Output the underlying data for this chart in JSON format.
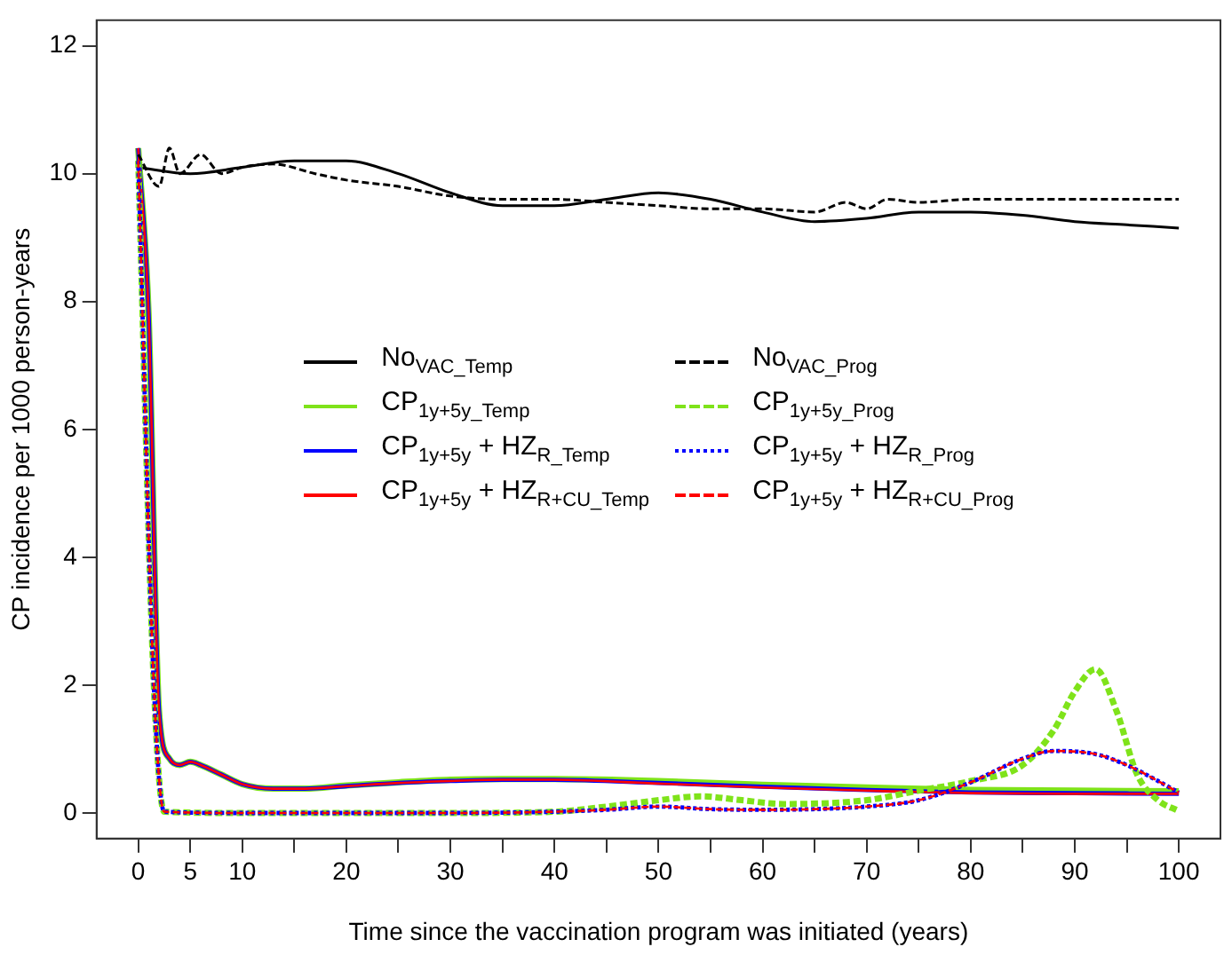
{
  "chart_data": {
    "type": "line",
    "xlabel": "Time since the vaccination program was initiated (years)",
    "ylabel": "CP incidence per 1000 person-years",
    "xlim": [
      -4,
      104
    ],
    "ylim": [
      -0.4,
      12.4
    ],
    "xticks": [
      0,
      5,
      10,
      {
        "value": 15,
        "label": null
      },
      20,
      {
        "value": 25,
        "label": null
      },
      30,
      {
        "value": 35,
        "label": null
      },
      40,
      {
        "value": 45,
        "label": null
      },
      50,
      {
        "value": 55,
        "label": null
      },
      60,
      {
        "value": 65,
        "label": null
      },
      70,
      {
        "value": 75,
        "label": null
      },
      80,
      {
        "value": 85,
        "label": null
      },
      90,
      {
        "value": 95,
        "label": null
      },
      100
    ],
    "yticks": [
      0,
      2,
      4,
      6,
      8,
      10,
      12
    ],
    "grid": false,
    "legend": "center",
    "marker": "none",
    "series": [
      {
        "name": "No$_{VAC_Temp}$",
        "color": "#000000",
        "line_style": "solid",
        "x": [
          0,
          5,
          10,
          15,
          20,
          25,
          30,
          35,
          40,
          45,
          50,
          55,
          60,
          65,
          70,
          75,
          80,
          85,
          90,
          95,
          100
        ],
        "values": [
          10.1,
          10.0,
          10.1,
          10.2,
          10.2,
          10.0,
          9.7,
          9.5,
          9.5,
          9.6,
          9.7,
          9.6,
          9.4,
          9.25,
          9.3,
          9.4,
          9.4,
          9.35,
          9.25,
          9.2,
          9.15
        ]
      },
      {
        "name": "CP$_{1y+5y_Temp}$",
        "color": "#7fe31a",
        "line_style": "solid",
        "x": [
          0,
          1,
          2,
          3,
          4,
          5,
          6,
          8,
          10,
          13,
          16,
          20,
          25,
          30,
          35,
          40,
          50,
          60,
          70,
          80,
          90,
          100
        ],
        "values": [
          10.4,
          7.8,
          1.6,
          0.85,
          0.75,
          0.8,
          0.75,
          0.6,
          0.45,
          0.38,
          0.38,
          0.43,
          0.48,
          0.52,
          0.53,
          0.53,
          0.5,
          0.44,
          0.4,
          0.36,
          0.35,
          0.34
        ]
      },
      {
        "name": "CP$_{1y+5y}$ + HZ$_{R_Temp}$",
        "color": "#0000ff",
        "line_style": "solid",
        "x": [
          0,
          1,
          2,
          3,
          4,
          5,
          6,
          8,
          10,
          13,
          16,
          20,
          25,
          30,
          35,
          40,
          50,
          60,
          70,
          80,
          90,
          100
        ],
        "values": [
          10.4,
          7.8,
          1.6,
          0.85,
          0.75,
          0.8,
          0.75,
          0.6,
          0.45,
          0.38,
          0.38,
          0.42,
          0.47,
          0.5,
          0.52,
          0.52,
          0.47,
          0.41,
          0.36,
          0.32,
          0.31,
          0.3
        ]
      },
      {
        "name": "CP$_{1y+5y}$ + HZ$_{R+CU_Temp}$",
        "color": "#ff0000",
        "line_style": "solid",
        "x": [
          0,
          1,
          2,
          3,
          4,
          5,
          6,
          8,
          10,
          13,
          16,
          20,
          25,
          30,
          35,
          40,
          50,
          60,
          70,
          80,
          90,
          100
        ],
        "values": [
          10.4,
          7.8,
          1.6,
          0.85,
          0.75,
          0.8,
          0.75,
          0.6,
          0.45,
          0.38,
          0.38,
          0.42,
          0.47,
          0.5,
          0.52,
          0.52,
          0.46,
          0.4,
          0.35,
          0.31,
          0.3,
          0.3
        ]
      },
      {
        "name": "No$_{VAC_Prog}$",
        "color": "#000000",
        "line_style": "dashed",
        "x": [
          0,
          2,
          3,
          4,
          6,
          8,
          10,
          13,
          17,
          20,
          25,
          30,
          35,
          40,
          45,
          50,
          55,
          60,
          65,
          68,
          70,
          72,
          75,
          80,
          90,
          100
        ],
        "values": [
          10.3,
          9.8,
          10.4,
          10.0,
          10.3,
          10.0,
          10.1,
          10.15,
          10.0,
          9.9,
          9.8,
          9.65,
          9.6,
          9.6,
          9.55,
          9.5,
          9.45,
          9.45,
          9.4,
          9.55,
          9.45,
          9.6,
          9.55,
          9.6,
          9.6,
          9.6
        ]
      },
      {
        "name": "CP$_{1y+5y_Prog}$",
        "color": "#7fe31a",
        "line_style": "dashed",
        "x": [
          0,
          1.5,
          2.5,
          10,
          20,
          30,
          40,
          45,
          50,
          54,
          58,
          62,
          70,
          75,
          80,
          85,
          88,
          90,
          92,
          94,
          96,
          98,
          100
        ],
        "values": [
          10.2,
          2.0,
          0.02,
          0,
          0,
          0,
          0.02,
          0.1,
          0.2,
          0.26,
          0.2,
          0.14,
          0.2,
          0.35,
          0.5,
          0.75,
          1.3,
          1.9,
          2.25,
          1.6,
          0.6,
          0.2,
          0.03
        ]
      },
      {
        "name": "CP$_{1y+5y}$ + HZ$_{R_Prog}$",
        "color": "#0000ff",
        "line_style": "dotted",
        "x": [
          0,
          1.5,
          2.5,
          10,
          20,
          30,
          40,
          45,
          50,
          55,
          60,
          65,
          70,
          75,
          80,
          85,
          88,
          92,
          95,
          98,
          100
        ],
        "values": [
          10.2,
          2.0,
          0.02,
          0,
          0,
          0,
          0.02,
          0.05,
          0.1,
          0.06,
          0.05,
          0.06,
          0.1,
          0.2,
          0.48,
          0.85,
          0.97,
          0.92,
          0.75,
          0.5,
          0.32
        ]
      },
      {
        "name": "CP$_{1y+5y}$ + HZ$_{R+CU_Prog}$",
        "color": "#ff0000",
        "line_style": "dashed",
        "x": [
          0,
          1.5,
          2.5,
          10,
          20,
          30,
          40,
          45,
          50,
          55,
          60,
          65,
          70,
          75,
          80,
          85,
          88,
          92,
          95,
          98,
          100
        ],
        "values": [
          10.2,
          2.0,
          0.02,
          0,
          0,
          0,
          0.02,
          0.05,
          0.1,
          0.06,
          0.05,
          0.06,
          0.1,
          0.2,
          0.48,
          0.85,
          0.97,
          0.92,
          0.75,
          0.5,
          0.32
        ]
      }
    ]
  }
}
